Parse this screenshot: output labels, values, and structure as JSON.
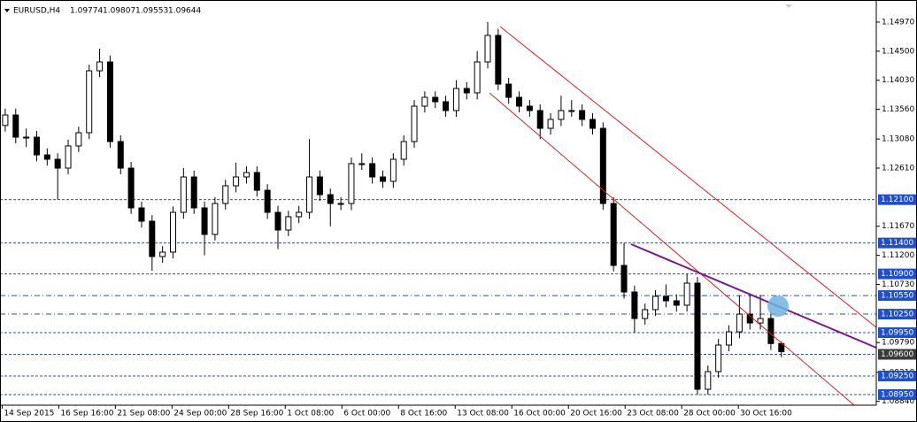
{
  "chart_data": {
    "type": "candlestick",
    "symbol": "EURUSD,H4",
    "header_values": [
      "1.09774",
      "1.09807",
      "1.09553",
      "1.09644"
    ],
    "ohlc": [
      [
        1.133,
        1.1357,
        1.132,
        1.13468
      ],
      [
        1.13468,
        1.1357,
        1.1301,
        1.1311
      ],
      [
        1.1311,
        1.1325,
        1.1295,
        1.1311
      ],
      [
        1.1311,
        1.1321,
        1.1272,
        1.12824
      ],
      [
        1.12824,
        1.1293,
        1.1265,
        1.12753
      ],
      [
        1.12753,
        1.1285,
        1.121,
        1.1261
      ],
      [
        1.1261,
        1.1307,
        1.1251,
        1.12968
      ],
      [
        1.12968,
        1.1328,
        1.1287,
        1.13182
      ],
      [
        1.13182,
        1.1428,
        1.1308,
        1.14183
      ],
      [
        1.14183,
        1.1454,
        1.1408,
        1.14326
      ],
      [
        1.14326,
        1.1443,
        1.1294,
        1.13039
      ],
      [
        1.13039,
        1.1314,
        1.1251,
        1.1261
      ],
      [
        1.1261,
        1.1271,
        1.1187,
        1.11967
      ],
      [
        1.11967,
        1.1207,
        1.1165,
        1.11752
      ],
      [
        1.11752,
        1.1185,
        1.1095,
        1.1118
      ],
      [
        1.1118,
        1.1135,
        1.1108,
        1.11252
      ],
      [
        1.11252,
        1.1199,
        1.1115,
        1.11895
      ],
      [
        1.11895,
        1.1261,
        1.1179,
        1.12467
      ],
      [
        1.12467,
        1.1257,
        1.1187,
        1.11967
      ],
      [
        1.11967,
        1.1207,
        1.112,
        1.11538
      ],
      [
        1.11538,
        1.1214,
        1.1144,
        1.12038
      ],
      [
        1.12038,
        1.1242,
        1.1194,
        1.12324
      ],
      [
        1.12324,
        1.127,
        1.1222,
        1.12467
      ],
      [
        1.12467,
        1.1264,
        1.1236,
        1.12539
      ],
      [
        1.12539,
        1.1264,
        1.1215,
        1.12252
      ],
      [
        1.12252,
        1.1235,
        1.1179,
        1.11895
      ],
      [
        1.11895,
        1.12,
        1.113,
        1.11609
      ],
      [
        1.11609,
        1.1192,
        1.1151,
        1.11824
      ],
      [
        1.11824,
        1.12,
        1.1172,
        1.11895
      ],
      [
        1.11895,
        1.1308,
        1.1179,
        1.12467
      ],
      [
        1.12467,
        1.1257,
        1.1208,
        1.12181
      ],
      [
        1.12181,
        1.1228,
        1.1167,
        1.12038
      ],
      [
        1.12038,
        1.1214,
        1.1193,
        1.12038
      ],
      [
        1.12038,
        1.1278,
        1.1193,
        1.12682
      ],
      [
        1.12682,
        1.1285,
        1.1258,
        1.12682
      ],
      [
        1.12682,
        1.1278,
        1.1236,
        1.12467
      ],
      [
        1.12467,
        1.1257,
        1.1229,
        1.12396
      ],
      [
        1.12396,
        1.1285,
        1.1229,
        1.12753
      ],
      [
        1.12753,
        1.1314,
        1.1265,
        1.13039
      ],
      [
        1.13039,
        1.1371,
        1.1294,
        1.13611
      ],
      [
        1.13611,
        1.1385,
        1.1351,
        1.13754
      ],
      [
        1.13754,
        1.1385,
        1.1358,
        1.13683
      ],
      [
        1.13683,
        1.1378,
        1.1344,
        1.1354
      ],
      [
        1.1354,
        1.1403,
        1.1344,
        1.13897
      ],
      [
        1.13897,
        1.14,
        1.1372,
        1.13826
      ],
      [
        1.13826,
        1.145,
        1.1372,
        1.14326
      ],
      [
        1.14326,
        1.1497,
        1.1422,
        1.14755
      ],
      [
        1.14755,
        1.1486,
        1.1387,
        1.13968
      ],
      [
        1.13968,
        1.1407,
        1.1365,
        1.13754
      ],
      [
        1.13754,
        1.1385,
        1.1351,
        1.13611
      ],
      [
        1.13611,
        1.1371,
        1.1344,
        1.1354
      ],
      [
        1.1354,
        1.1364,
        1.1308,
        1.13253
      ],
      [
        1.13253,
        1.135,
        1.1315,
        1.13397
      ],
      [
        1.13397,
        1.1378,
        1.1329,
        1.1354
      ],
      [
        1.1354,
        1.1371,
        1.1344,
        1.1354
      ],
      [
        1.1354,
        1.1364,
        1.1329,
        1.13397
      ],
      [
        1.13397,
        1.135,
        1.1315,
        1.13253
      ],
      [
        1.13253,
        1.1335,
        1.1194,
        1.12038
      ],
      [
        1.12038,
        1.1214,
        1.1094,
        1.11037
      ],
      [
        1.11037,
        1.114,
        1.105,
        1.10608
      ],
      [
        1.10608,
        1.1071,
        1.0995,
        1.10179
      ],
      [
        1.10179,
        1.1042,
        1.1008,
        1.10322
      ],
      [
        1.10322,
        1.1064,
        1.1022,
        1.10537
      ],
      [
        1.10537,
        1.1073,
        1.1036,
        1.10465
      ],
      [
        1.10465,
        1.1057,
        1.1029,
        1.10394
      ],
      [
        1.10394,
        1.109,
        1.1029,
        1.10751
      ],
      [
        1.10751,
        1.1085,
        1.0895,
        1.09035
      ],
      [
        1.09035,
        1.0942,
        1.0895,
        1.09321
      ],
      [
        1.09321,
        1.0985,
        1.0922,
        1.0975
      ],
      [
        1.0975,
        1.1007,
        1.0965,
        1.09964
      ],
      [
        1.09964,
        1.1055,
        1.0986,
        1.1025
      ],
      [
        1.1025,
        1.1055,
        1.1,
        1.10107
      ],
      [
        1.10107,
        1.1055,
        1.1,
        1.10179
      ],
      [
        1.10179,
        1.1028,
        1.0967,
        1.09774
      ],
      [
        1.09774,
        1.09807,
        1.09553,
        1.09644
      ]
    ],
    "xlim": [
      -0.5,
      83.05
    ],
    "ylim": [
      1.08778,
      1.15327
    ],
    "xticks": [
      {
        "value": -0.3,
        "label": "14 Sep 2015"
      },
      {
        "value": 5.1,
        "label": "16 Sep 16:00"
      },
      {
        "value": 10.5,
        "label": "21 Sep 08:00"
      },
      {
        "value": 15.9,
        "label": "24 Sep 00:00"
      },
      {
        "value": 21.3,
        "label": "28 Sep 16:00"
      },
      {
        "value": 26.7,
        "label": "1 Oct 08:00"
      },
      {
        "value": 32.1,
        "label": "6 Oct 00:00"
      },
      {
        "value": 37.5,
        "label": "8 Oct 16:00"
      },
      {
        "value": 42.9,
        "label": "13 Oct 08:00"
      },
      {
        "value": 48.3,
        "label": "16 Oct 00:00"
      },
      {
        "value": 53.7,
        "label": "20 Oct 16:00"
      },
      {
        "value": 59.1,
        "label": "23 Oct 08:00"
      },
      {
        "value": 64.5,
        "label": "28 Oct 00:00"
      },
      {
        "value": 69.9,
        "label": "30 Oct 16:00"
      }
    ],
    "yticks": [
      {
        "value": 1.1497,
        "label": "1.14970"
      },
      {
        "value": 1.145,
        "label": "1.14500"
      },
      {
        "value": 1.1403,
        "label": "1.14030"
      },
      {
        "value": 1.1356,
        "label": "1.13560"
      },
      {
        "value": 1.1308,
        "label": "1.13080"
      },
      {
        "value": 1.1261,
        "label": "1.12610"
      },
      {
        "value": 1.1167,
        "label": "1.11670"
      },
      {
        "value": 1.112,
        "label": "1.11200"
      },
      {
        "value": 1.1073,
        "label": "1.10730"
      },
      {
        "value": 1.0979,
        "label": "1.09790"
      },
      {
        "value": 1.0931,
        "label": "1.09310"
      },
      {
        "value": 1.0884,
        "label": "1.08840"
      }
    ],
    "levels": [
      {
        "value": 1.121,
        "label": "1.12100",
        "style": "dashed",
        "color": "#1f4fc4"
      },
      {
        "value": 1.114,
        "label": "1.11400",
        "style": "dashed",
        "color": "#1f4fc4"
      },
      {
        "value": 1.109,
        "label": "1.10900",
        "style": "dashed",
        "color": "#1f4fc4"
      },
      {
        "value": 1.1055,
        "label": "1.10550",
        "style": "dashdot",
        "color": "#1f4fc4"
      },
      {
        "value": 1.1025,
        "label": "1.10250",
        "style": "dashdot",
        "color": "#1f4fc4"
      },
      {
        "value": 1.0995,
        "label": "1.09950",
        "style": "dashed",
        "color": "#1f4fc4"
      },
      {
        "value": 1.096,
        "label": "1.09600",
        "style": "dashed",
        "color": "#3a3a3a"
      },
      {
        "value": 1.0925,
        "label": "1.09250",
        "style": "dashed",
        "color": "#1f4fc4"
      },
      {
        "value": 1.0895,
        "label": "1.08950",
        "style": "dashed",
        "color": "#1f4fc4"
      }
    ]
  }
}
